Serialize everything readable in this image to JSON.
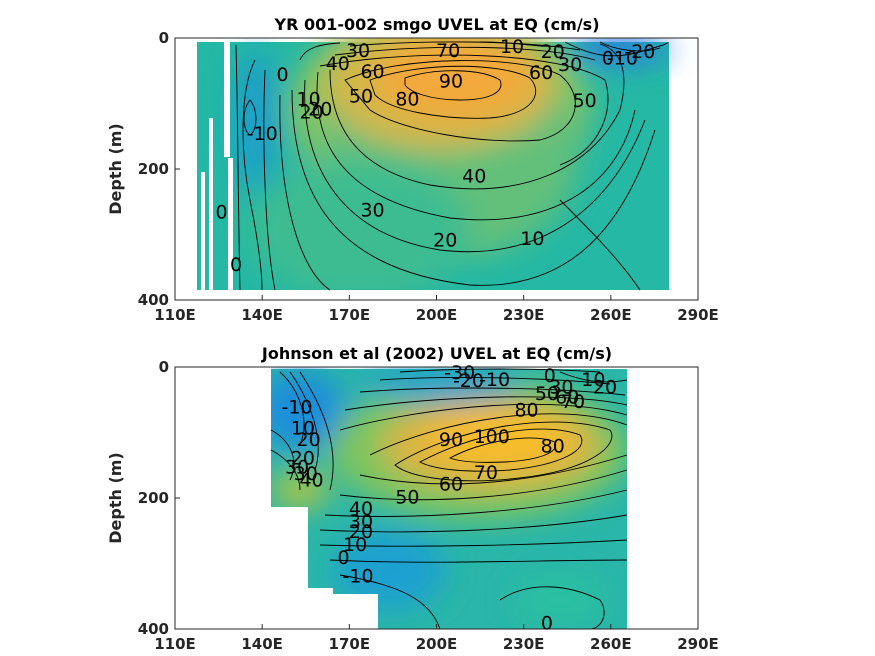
{
  "chart_data": [
    {
      "type": "contour",
      "title": "YR 001-002 smgo UVEL at EQ (cm/s)",
      "ylabel": "Depth (m)",
      "xlabel": "",
      "x_ticks": [
        "110E",
        "140E",
        "170E",
        "200E",
        "230E",
        "260E",
        "290E"
      ],
      "y_ticks": [
        "0",
        "200",
        "400"
      ],
      "xlim": [
        110,
        290
      ],
      "ylim": [
        0,
        400
      ],
      "y_reversed": true,
      "colormap": "parula",
      "core": {
        "lon": 205,
        "depth": 70,
        "max": 95
      },
      "contour_labels": [
        {
          "text": "30",
          "lon": 173,
          "depth": 18
        },
        {
          "text": "40",
          "lon": 166,
          "depth": 38
        },
        {
          "text": "60",
          "lon": 178,
          "depth": 50
        },
        {
          "text": "70",
          "lon": 204,
          "depth": 18
        },
        {
          "text": "90",
          "lon": 205,
          "depth": 65
        },
        {
          "text": "80",
          "lon": 190,
          "depth": 92
        },
        {
          "text": "10",
          "lon": 226,
          "depth": 12
        },
        {
          "text": "20",
          "lon": 240,
          "depth": 20
        },
        {
          "text": "30",
          "lon": 246,
          "depth": 40
        },
        {
          "text": "60",
          "lon": 236,
          "depth": 52
        },
        {
          "text": "50",
          "lon": 251,
          "depth": 95
        },
        {
          "text": "0",
          "lon": 259,
          "depth": 30
        },
        {
          "text": "-10",
          "lon": 264,
          "depth": 30
        },
        {
          "text": "-20",
          "lon": 270,
          "depth": 20
        },
        {
          "text": "0",
          "lon": 147,
          "depth": 55
        },
        {
          "text": "10",
          "lon": 156,
          "depth": 92
        },
        {
          "text": "20",
          "lon": 157,
          "depth": 112
        },
        {
          "text": "20",
          "lon": 160,
          "depth": 108
        },
        {
          "text": "50",
          "lon": 174,
          "depth": 88
        },
        {
          "text": "-10",
          "lon": 140,
          "depth": 145
        },
        {
          "text": "40",
          "lon": 213,
          "depth": 210
        },
        {
          "text": "30",
          "lon": 178,
          "depth": 262
        },
        {
          "text": "20",
          "lon": 203,
          "depth": 308
        },
        {
          "text": "10",
          "lon": 233,
          "depth": 305
        },
        {
          "text": "0",
          "lon": 126,
          "depth": 265
        },
        {
          "text": "0",
          "lon": 131,
          "depth": 345
        }
      ]
    },
    {
      "type": "contour",
      "title": "Johnson et al (2002) UVEL at EQ (cm/s)",
      "ylabel": "Depth (m)",
      "xlabel": "",
      "x_ticks": [
        "110E",
        "140E",
        "170E",
        "200E",
        "230E",
        "260E",
        "290E"
      ],
      "y_ticks": [
        "0",
        "200",
        "400"
      ],
      "xlim": [
        110,
        290
      ],
      "ylim": [
        0,
        400
      ],
      "y_reversed": true,
      "colormap": "parula",
      "core": {
        "lon": 225,
        "depth": 115,
        "max": 105
      },
      "contour_labels": [
        {
          "text": "-30",
          "lon": 208,
          "depth": 8
        },
        {
          "text": "-20",
          "lon": 211,
          "depth": 20
        },
        {
          "text": "-10",
          "lon": 220,
          "depth": 18
        },
        {
          "text": "0",
          "lon": 239,
          "depth": 12
        },
        {
          "text": "10",
          "lon": 254,
          "depth": 18
        },
        {
          "text": "20",
          "lon": 258,
          "depth": 30
        },
        {
          "text": "30",
          "lon": 243,
          "depth": 30
        },
        {
          "text": "50",
          "lon": 238,
          "depth": 40
        },
        {
          "text": "60",
          "lon": 245,
          "depth": 45
        },
        {
          "text": "70",
          "lon": 247,
          "depth": 52
        },
        {
          "text": "80",
          "lon": 231,
          "depth": 65
        },
        {
          "text": "100",
          "lon": 219,
          "depth": 105
        },
        {
          "text": "90",
          "lon": 205,
          "depth": 110
        },
        {
          "text": "80",
          "lon": 240,
          "depth": 120
        },
        {
          "text": "70",
          "lon": 217,
          "depth": 160
        },
        {
          "text": "60",
          "lon": 205,
          "depth": 178
        },
        {
          "text": "50",
          "lon": 190,
          "depth": 198
        },
        {
          "text": "-10",
          "lon": 152,
          "depth": 60
        },
        {
          "text": "10",
          "lon": 154,
          "depth": 92
        },
        {
          "text": "20",
          "lon": 156,
          "depth": 110
        },
        {
          "text": "30",
          "lon": 152,
          "depth": 152
        },
        {
          "text": "20",
          "lon": 154,
          "depth": 138
        },
        {
          "text": "30",
          "lon": 155,
          "depth": 162
        },
        {
          "text": "40",
          "lon": 157,
          "depth": 172
        },
        {
          "text": "40",
          "lon": 174,
          "depth": 215
        },
        {
          "text": "30",
          "lon": 174,
          "depth": 235
        },
        {
          "text": "20",
          "lon": 174,
          "depth": 250
        },
        {
          "text": "10",
          "lon": 172,
          "depth": 270
        },
        {
          "text": "0",
          "lon": 168,
          "depth": 290
        },
        {
          "text": "-10",
          "lon": 173,
          "depth": 318
        },
        {
          "text": "0",
          "lon": 238,
          "depth": 390
        }
      ]
    }
  ]
}
